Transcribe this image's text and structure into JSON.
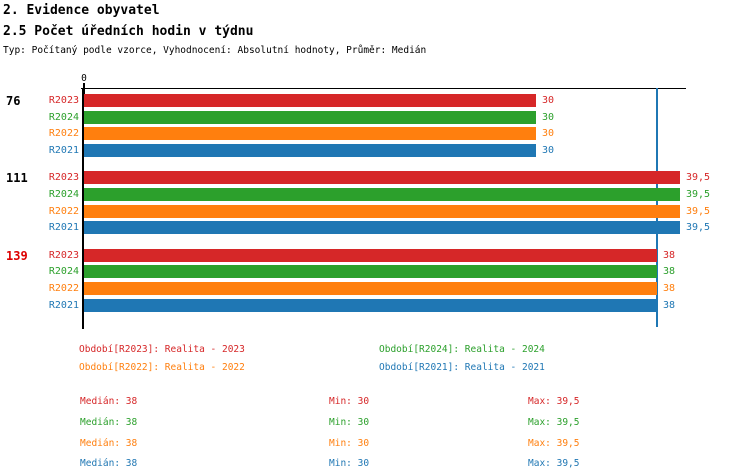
{
  "header": {
    "title_line1": "2. Evidence obyvatel",
    "title_line2": "2.5 Počet úředních hodin v týdnu",
    "subtitle": "Typ: Počítaný podle vzorce, Vyhodnocení: Absolutní hodnoty, Průměr: Medián"
  },
  "chart_data": {
    "type": "bar",
    "orientation": "horizontal",
    "title": "2.5 Počet úředních hodin v týdnu",
    "axis": {
      "min": 0,
      "max": 40,
      "tick_labels": [
        "0"
      ],
      "grid": false
    },
    "series_order": [
      "R2023",
      "R2024",
      "R2022",
      "R2021"
    ],
    "series_colors": {
      "R2023": "#d62728",
      "R2024": "#2ca02c",
      "R2022": "#ff7f0e",
      "R2021": "#1f77b4"
    },
    "groups": [
      {
        "label": "76",
        "label_color": "#000000",
        "bars": [
          {
            "series": "R2023",
            "value": 30,
            "value_label": "30"
          },
          {
            "series": "R2024",
            "value": 30,
            "value_label": "30"
          },
          {
            "series": "R2022",
            "value": 30,
            "value_label": "30"
          },
          {
            "series": "R2021",
            "value": 30,
            "value_label": "30"
          }
        ]
      },
      {
        "label": "111",
        "label_color": "#000000",
        "bars": [
          {
            "series": "R2023",
            "value": 39.5,
            "value_label": "39,5"
          },
          {
            "series": "R2024",
            "value": 39.5,
            "value_label": "39,5"
          },
          {
            "series": "R2022",
            "value": 39.5,
            "value_label": "39,5"
          },
          {
            "series": "R2021",
            "value": 39.5,
            "value_label": "39,5"
          }
        ]
      },
      {
        "label": "139",
        "label_color": "#dd0000",
        "bars": [
          {
            "series": "R2023",
            "value": 38,
            "value_label": "38"
          },
          {
            "series": "R2024",
            "value": 38,
            "value_label": "38"
          },
          {
            "series": "R2022",
            "value": 38,
            "value_label": "38"
          },
          {
            "series": "R2021",
            "value": 38,
            "value_label": "38"
          }
        ]
      }
    ],
    "median_line": {
      "value": 38,
      "color": "#1f77b4"
    },
    "legend_position": "bottom"
  },
  "legend": {
    "items": [
      {
        "label": "Období[R2023]: Realita - 2023",
        "color": "#d62728"
      },
      {
        "label": "Období[R2024]: Realita - 2024",
        "color": "#2ca02c"
      },
      {
        "label": "Období[R2022]: Realita - 2022",
        "color": "#ff7f0e"
      },
      {
        "label": "Období[R2021]: Realita - 2021",
        "color": "#1f77b4"
      }
    ]
  },
  "stats": {
    "rows": [
      {
        "series": "R2023",
        "color": "#d62728",
        "median": "Medián: 38",
        "min": "Min: 30",
        "max": "Max: 39,5"
      },
      {
        "series": "R2024",
        "color": "#2ca02c",
        "median": "Medián: 38",
        "min": "Min: 30",
        "max": "Max: 39,5"
      },
      {
        "series": "R2022",
        "color": "#ff7f0e",
        "median": "Medián: 38",
        "min": "Min: 30",
        "max": "Max: 39,5"
      },
      {
        "series": "R2021",
        "color": "#1f77b4",
        "median": "Medián: 38",
        "min": "Min: 30",
        "max": "Max: 39,5"
      }
    ]
  }
}
